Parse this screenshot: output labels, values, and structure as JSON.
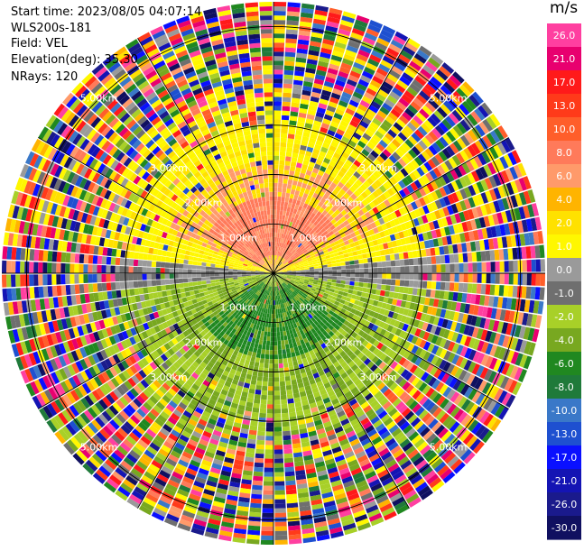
{
  "header": {
    "start_time": "Start time: 2023/08/05 04:07:14",
    "instrument": "WLS200s-181",
    "field": "Field: VEL",
    "elevation": "Elevation(deg): 35.30",
    "nrays": "NRays: 120"
  },
  "chart_data": {
    "type": "heatmap",
    "projection": "polar (PPI)",
    "field": "VEL",
    "units": "m/s",
    "nrays": 120,
    "elevation_deg": 35.3,
    "range_rings_km": [
      1.0,
      2.0,
      3.0,
      5.0
    ],
    "range_ring_labels": [
      "1.00km",
      "2.00km",
      "3.00km",
      "5.00km"
    ],
    "spoke_angles_deg": [
      0,
      30,
      60,
      90,
      120,
      150,
      180,
      210,
      240,
      270,
      300,
      330
    ],
    "max_range_km": 5.5,
    "colorbar": {
      "unit_label": "m/s",
      "tick_labels": [
        "26.0",
        "21.0",
        "17.0",
        "13.0",
        "10.0",
        "8.0",
        "6.0",
        "4.0",
        "2.0",
        "1.0",
        "0.0",
        "-1.0",
        "-2.0",
        "-4.0",
        "-6.0",
        "-8.0",
        "-10.0",
        "-13.0",
        "-17.0",
        "-21.0",
        "-26.0",
        "-30.0"
      ],
      "colors": [
        "#ff3fa0",
        "#e8006f",
        "#ff1a1a",
        "#ff3a1a",
        "#ff5e2a",
        "#ff7a5a",
        "#ff9a6a",
        "#ffb400",
        "#ffe100",
        "#fff700",
        "#9a9a9a",
        "#6f6f6f",
        "#a8d028",
        "#78a820",
        "#208820",
        "#1f7a3a",
        "#3a78c8",
        "#1e50d0",
        "#0a10ff",
        "#1414b4",
        "#1a1a8c",
        "#101060"
      ]
    },
    "near_field_pattern": {
      "north_sector": "positive velocity (toward red/orange core near 8 m/s at 0.5-1.5 km)",
      "south_sector": "negative velocity (green core near -6 m/s at 0.5-1.5 km)",
      "east_west_axis": "near zero (grey)",
      "beyond_3km": "noise across full color scale"
    }
  }
}
